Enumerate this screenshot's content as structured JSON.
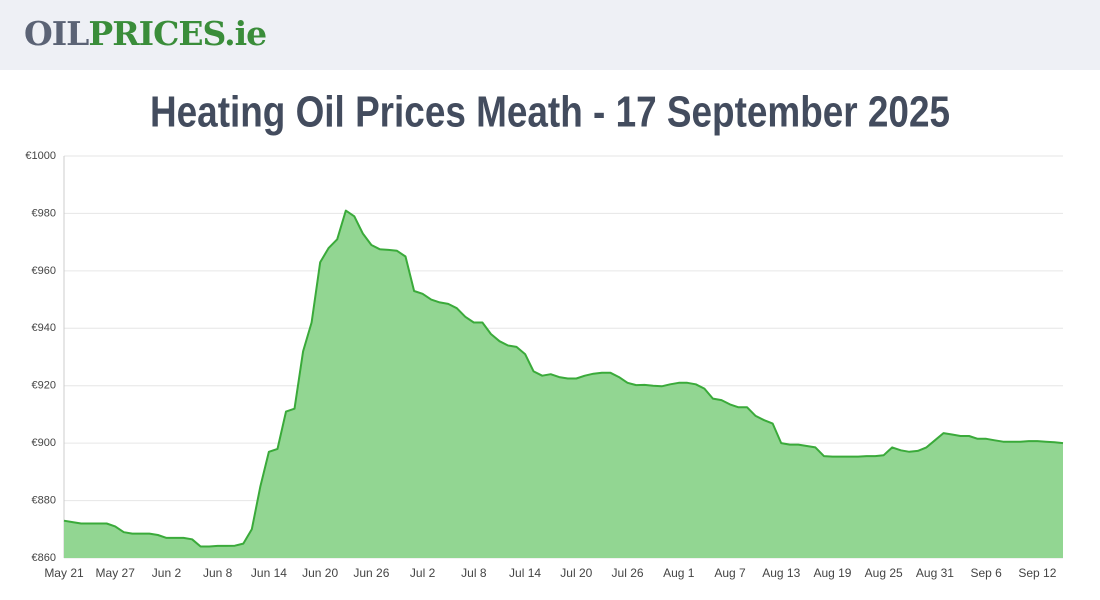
{
  "header": {
    "logo": [
      "OIL",
      "PRICES.ie"
    ]
  },
  "chart_data": {
    "type": "area",
    "title": "Heating Oil Prices Meath - 17 September 2025",
    "categories": [
      "May 21",
      null,
      null,
      null,
      null,
      null,
      "May 27",
      null,
      null,
      null,
      null,
      null,
      "Jun 2",
      null,
      null,
      null,
      null,
      null,
      "Jun 8",
      null,
      null,
      null,
      null,
      null,
      "Jun 14",
      null,
      null,
      null,
      null,
      null,
      "Jun 20",
      null,
      null,
      null,
      null,
      null,
      "Jun 26",
      null,
      null,
      null,
      null,
      null,
      "Jul 2",
      null,
      null,
      null,
      null,
      null,
      "Jul 8",
      null,
      null,
      null,
      null,
      null,
      "Jul 14",
      null,
      null,
      null,
      null,
      null,
      "Jul 20",
      null,
      null,
      null,
      null,
      null,
      "Jul 26",
      null,
      null,
      null,
      null,
      null,
      "Aug 1",
      null,
      null,
      null,
      null,
      null,
      "Aug 7",
      null,
      null,
      null,
      null,
      null,
      "Aug 13",
      null,
      null,
      null,
      null,
      null,
      "Aug 19",
      null,
      null,
      null,
      null,
      null,
      "Aug 25",
      null,
      null,
      null,
      null,
      null,
      "Aug 31",
      null,
      null,
      null,
      null,
      null,
      "Sep 6",
      null,
      null,
      null,
      null,
      null,
      "Sep 12",
      null,
      null,
      null
    ],
    "values": [
      873,
      872.5,
      872,
      872,
      872,
      872,
      871,
      869,
      868.5,
      868.5,
      868.5,
      868,
      867,
      867,
      867,
      866.5,
      864,
      864,
      864.2,
      864.2,
      864.3,
      865,
      870,
      885,
      897,
      898,
      911,
      912,
      932,
      942,
      963,
      968,
      971,
      981,
      979,
      973,
      969,
      967.5,
      967.3,
      967,
      965,
      953,
      952,
      950,
      949,
      948.5,
      947,
      944,
      942,
      942,
      938,
      935.5,
      934,
      933.5,
      931,
      925,
      923.5,
      924,
      923,
      922.5,
      922.5,
      923.5,
      924.2,
      924.5,
      924.5,
      923,
      921,
      920.2,
      920.3,
      920,
      919.8,
      920.5,
      921,
      921,
      920.5,
      919,
      915.5,
      915,
      913.5,
      912.5,
      912.5,
      909.5,
      908,
      906.8,
      900,
      899.5,
      899.5,
      899,
      898.5,
      895.5,
      895.3,
      895.3,
      895.3,
      895.3,
      895.5,
      895.5,
      895.8,
      898.5,
      897.5,
      897,
      897.3,
      898.5,
      901,
      903.5,
      903,
      902.5,
      902.5,
      901.5,
      901.5,
      901,
      900.5,
      900.5,
      900.5,
      900.7,
      900.7,
      900.5,
      900.3,
      900
    ],
    "color": "#3aaa3a",
    "fill": "#92d692",
    "ylim": [
      860,
      1000
    ],
    "yticks": [
      {
        "value": 860,
        "label": "€860"
      },
      {
        "value": 880,
        "label": "€880"
      },
      {
        "value": 900,
        "label": "€900"
      },
      {
        "value": 920,
        "label": "€920"
      },
      {
        "value": 940,
        "label": "€940"
      },
      {
        "value": 960,
        "label": "€960"
      },
      {
        "value": 980,
        "label": "€980"
      },
      {
        "value": 1000,
        "label": "€1000"
      }
    ],
    "grid": true
  }
}
